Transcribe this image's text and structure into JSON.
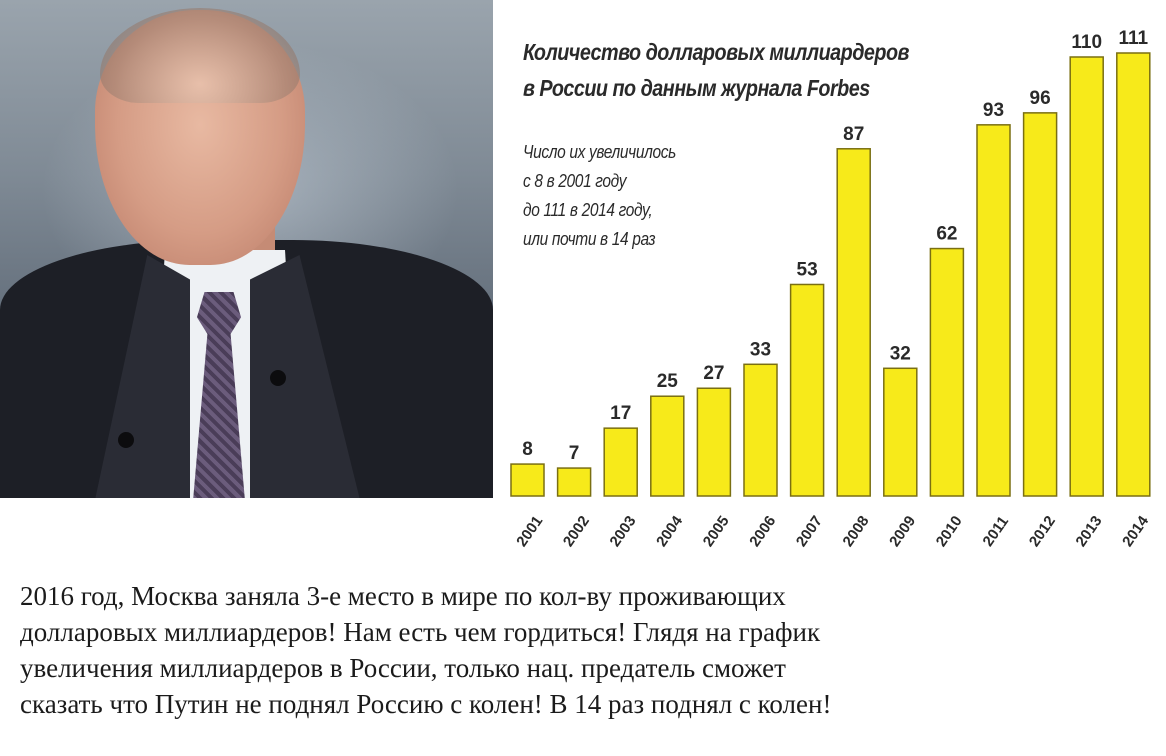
{
  "chart_data": {
    "type": "bar",
    "title_lines": [
      "Количество долларовых миллиардеров",
      "в России по данным журнала Forbes"
    ],
    "annotation_lines": [
      "Число их увеличилось",
      "с 8 в 2001 году",
      "до 111 в 2014 году,",
      "или почти в 14 раз"
    ],
    "categories": [
      "2001",
      "2002",
      "2003",
      "2004",
      "2005",
      "2006",
      "2007",
      "2008",
      "2009",
      "2010",
      "2011",
      "2012",
      "2013",
      "2014"
    ],
    "values": [
      8,
      7,
      17,
      25,
      27,
      33,
      53,
      87,
      32,
      62,
      93,
      96,
      110,
      111
    ],
    "ylim": [
      0,
      111
    ],
    "grid": false,
    "data_labels": true,
    "bar_color": "#f7ea1a",
    "bar_stroke": "#7a6f12"
  },
  "photo": {
    "description_icon": "portrait-photo"
  },
  "caption": {
    "lines": [
      "2016 год, Москва заняла 3-е место в мире по кол-ву проживающих",
      "долларовых миллиардеров! Нам есть чем гордиться! Глядя на график",
      "увеличения миллиардеров в России, только нац. предатель сможет",
      "сказать что Путин не поднял Россию с колен! В 14 раз поднял с колен!"
    ]
  }
}
